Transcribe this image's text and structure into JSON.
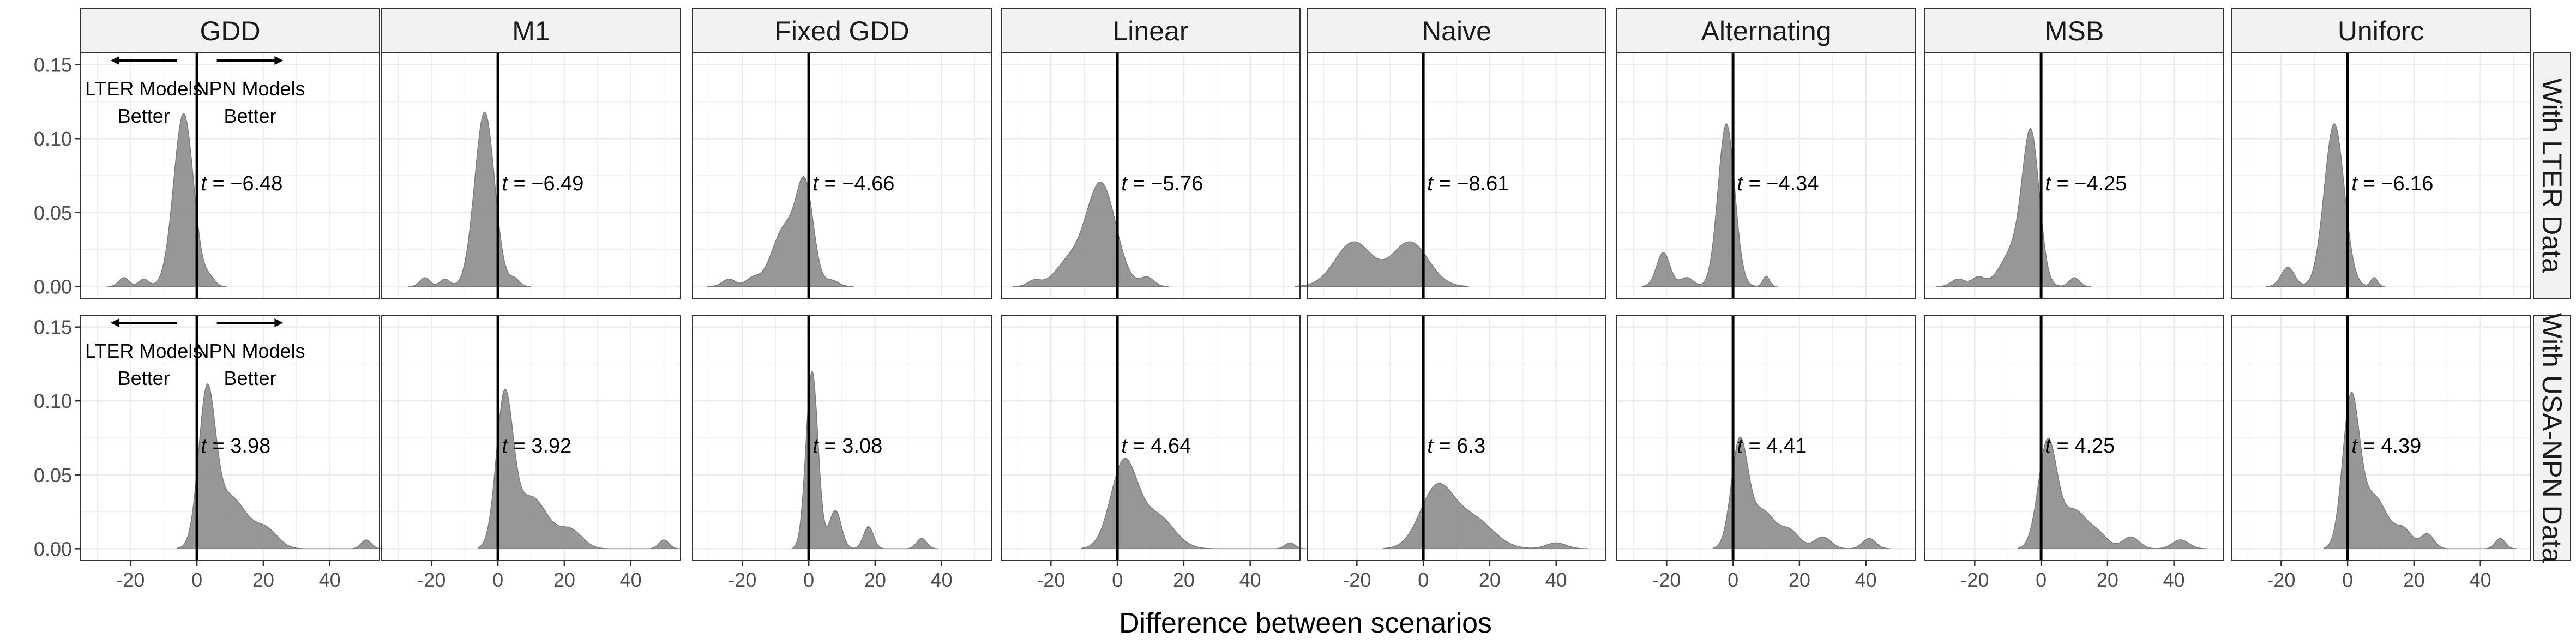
{
  "chart_data": {
    "type": "area",
    "xlabel": "Difference between scenarios",
    "ylabel": "",
    "xlim": [
      -35,
      55
    ],
    "ylim": [
      -0.008,
      0.158
    ],
    "x_ticks": [
      -20,
      0,
      20,
      40
    ],
    "x_tick_labels": [
      "-20",
      "0",
      "20",
      "40"
    ],
    "y_ticks": [
      0.0,
      0.05,
      0.1,
      0.15
    ],
    "y_tick_labels": [
      "0.00",
      "0.05",
      "0.10",
      "0.15"
    ],
    "grid": true,
    "vline_x": 0,
    "column_facets": [
      "GDD",
      "M1",
      "Fixed GDD",
      "Linear",
      "Naive",
      "Alternating",
      "MSB",
      "Uniforc"
    ],
    "row_facets": [
      "With LTER Data",
      "With USA-NPN Data"
    ],
    "annotations": {
      "left_label": [
        "LTER Models",
        "Better"
      ],
      "right_label": [
        "NPN Models",
        "Better"
      ]
    },
    "t_prefix": "t = ",
    "t_stats": [
      [
        "−6.48",
        "−6.49",
        "−4.66",
        "−5.76",
        "−8.61",
        "−4.34",
        "−4.25",
        "−6.16"
      ],
      [
        "3.98",
        "3.92",
        "3.08",
        "4.64",
        "6.3",
        "4.41",
        "4.25",
        "4.39"
      ]
    ],
    "density_peaks": [
      [
        [
          {
            "x": -22,
            "h": 0.006,
            "w": 1.5
          },
          {
            "x": -16,
            "h": 0.005,
            "w": 1.5
          },
          {
            "x": -4,
            "h": 0.117,
            "w": 3.0
          },
          {
            "x": 4,
            "h": 0.005,
            "w": 1.5
          }
        ],
        [
          {
            "x": -22,
            "h": 0.006,
            "w": 1.5
          },
          {
            "x": -16,
            "h": 0.005,
            "w": 1.5
          },
          {
            "x": -4,
            "h": 0.118,
            "w": 3.0
          },
          {
            "x": 5,
            "h": 0.005,
            "w": 1.5
          }
        ],
        [
          {
            "x": -24,
            "h": 0.005,
            "w": 2.0
          },
          {
            "x": -17,
            "h": 0.005,
            "w": 2.0
          },
          {
            "x": -7,
            "h": 0.04,
            "w": 4.0
          },
          {
            "x": -1,
            "h": 0.06,
            "w": 2.5
          },
          {
            "x": 7,
            "h": 0.004,
            "w": 2.0
          }
        ],
        [
          {
            "x": -25,
            "h": 0.004,
            "w": 2.0
          },
          {
            "x": -15,
            "h": 0.015,
            "w": 4.0
          },
          {
            "x": -5,
            "h": 0.07,
            "w": 4.5
          },
          {
            "x": 9,
            "h": 0.006,
            "w": 2.0
          }
        ],
        [
          {
            "x": -21,
            "h": 0.03,
            "w": 5.5
          },
          {
            "x": -4,
            "h": 0.03,
            "w": 5.5
          }
        ],
        [
          {
            "x": -21,
            "h": 0.023,
            "w": 2.0
          },
          {
            "x": -14,
            "h": 0.006,
            "w": 2.0
          },
          {
            "x": -2,
            "h": 0.11,
            "w": 2.5
          },
          {
            "x": 10,
            "h": 0.007,
            "w": 1.0
          }
        ],
        [
          {
            "x": -25,
            "h": 0.005,
            "w": 2.0
          },
          {
            "x": -19,
            "h": 0.006,
            "w": 2.0
          },
          {
            "x": -8,
            "h": 0.025,
            "w": 4.0
          },
          {
            "x": -3,
            "h": 0.095,
            "w": 2.5
          },
          {
            "x": 10,
            "h": 0.006,
            "w": 1.5
          }
        ],
        [
          {
            "x": -18,
            "h": 0.013,
            "w": 2.0
          },
          {
            "x": -4,
            "h": 0.11,
            "w": 3.0
          },
          {
            "x": 8,
            "h": 0.006,
            "w": 1.0
          }
        ]
      ],
      [
        [
          {
            "x": 3,
            "h": 0.098,
            "w": 2.5
          },
          {
            "x": 10,
            "h": 0.035,
            "w": 5.0
          },
          {
            "x": 21,
            "h": 0.012,
            "w": 3.5
          },
          {
            "x": 51,
            "h": 0.006,
            "w": 1.5
          }
        ],
        [
          {
            "x": 2,
            "h": 0.098,
            "w": 2.5
          },
          {
            "x": 10,
            "h": 0.035,
            "w": 5.0
          },
          {
            "x": 22,
            "h": 0.012,
            "w": 3.5
          },
          {
            "x": 50,
            "h": 0.006,
            "w": 1.5
          }
        ],
        [
          {
            "x": 1,
            "h": 0.12,
            "w": 1.8
          },
          {
            "x": 8,
            "h": 0.026,
            "w": 1.8
          },
          {
            "x": 18,
            "h": 0.015,
            "w": 1.5
          },
          {
            "x": 34,
            "h": 0.007,
            "w": 1.5
          }
        ],
        [
          {
            "x": 2,
            "h": 0.058,
            "w": 4.0
          },
          {
            "x": 12,
            "h": 0.022,
            "w": 5.0
          },
          {
            "x": 52,
            "h": 0.004,
            "w": 1.5
          }
        ],
        [
          {
            "x": 4,
            "h": 0.04,
            "w": 5.0
          },
          {
            "x": 15,
            "h": 0.02,
            "w": 6.0
          },
          {
            "x": 40,
            "h": 0.004,
            "w": 3.0
          }
        ],
        [
          {
            "x": 2,
            "h": 0.072,
            "w": 2.5
          },
          {
            "x": 9,
            "h": 0.025,
            "w": 3.5
          },
          {
            "x": 17,
            "h": 0.012,
            "w": 3.0
          },
          {
            "x": 27,
            "h": 0.008,
            "w": 2.5
          },
          {
            "x": 41,
            "h": 0.007,
            "w": 2.0
          }
        ],
        [
          {
            "x": 2,
            "h": 0.073,
            "w": 2.8
          },
          {
            "x": 10,
            "h": 0.025,
            "w": 3.5
          },
          {
            "x": 17,
            "h": 0.01,
            "w": 3.0
          },
          {
            "x": 27,
            "h": 0.008,
            "w": 2.5
          },
          {
            "x": 42,
            "h": 0.006,
            "w": 2.5
          }
        ],
        [
          {
            "x": 1,
            "h": 0.098,
            "w": 2.5
          },
          {
            "x": 8,
            "h": 0.035,
            "w": 4.0
          },
          {
            "x": 17,
            "h": 0.012,
            "w": 2.5
          },
          {
            "x": 24,
            "h": 0.01,
            "w": 2.0
          },
          {
            "x": 46,
            "h": 0.007,
            "w": 1.5
          }
        ]
      ]
    ]
  }
}
